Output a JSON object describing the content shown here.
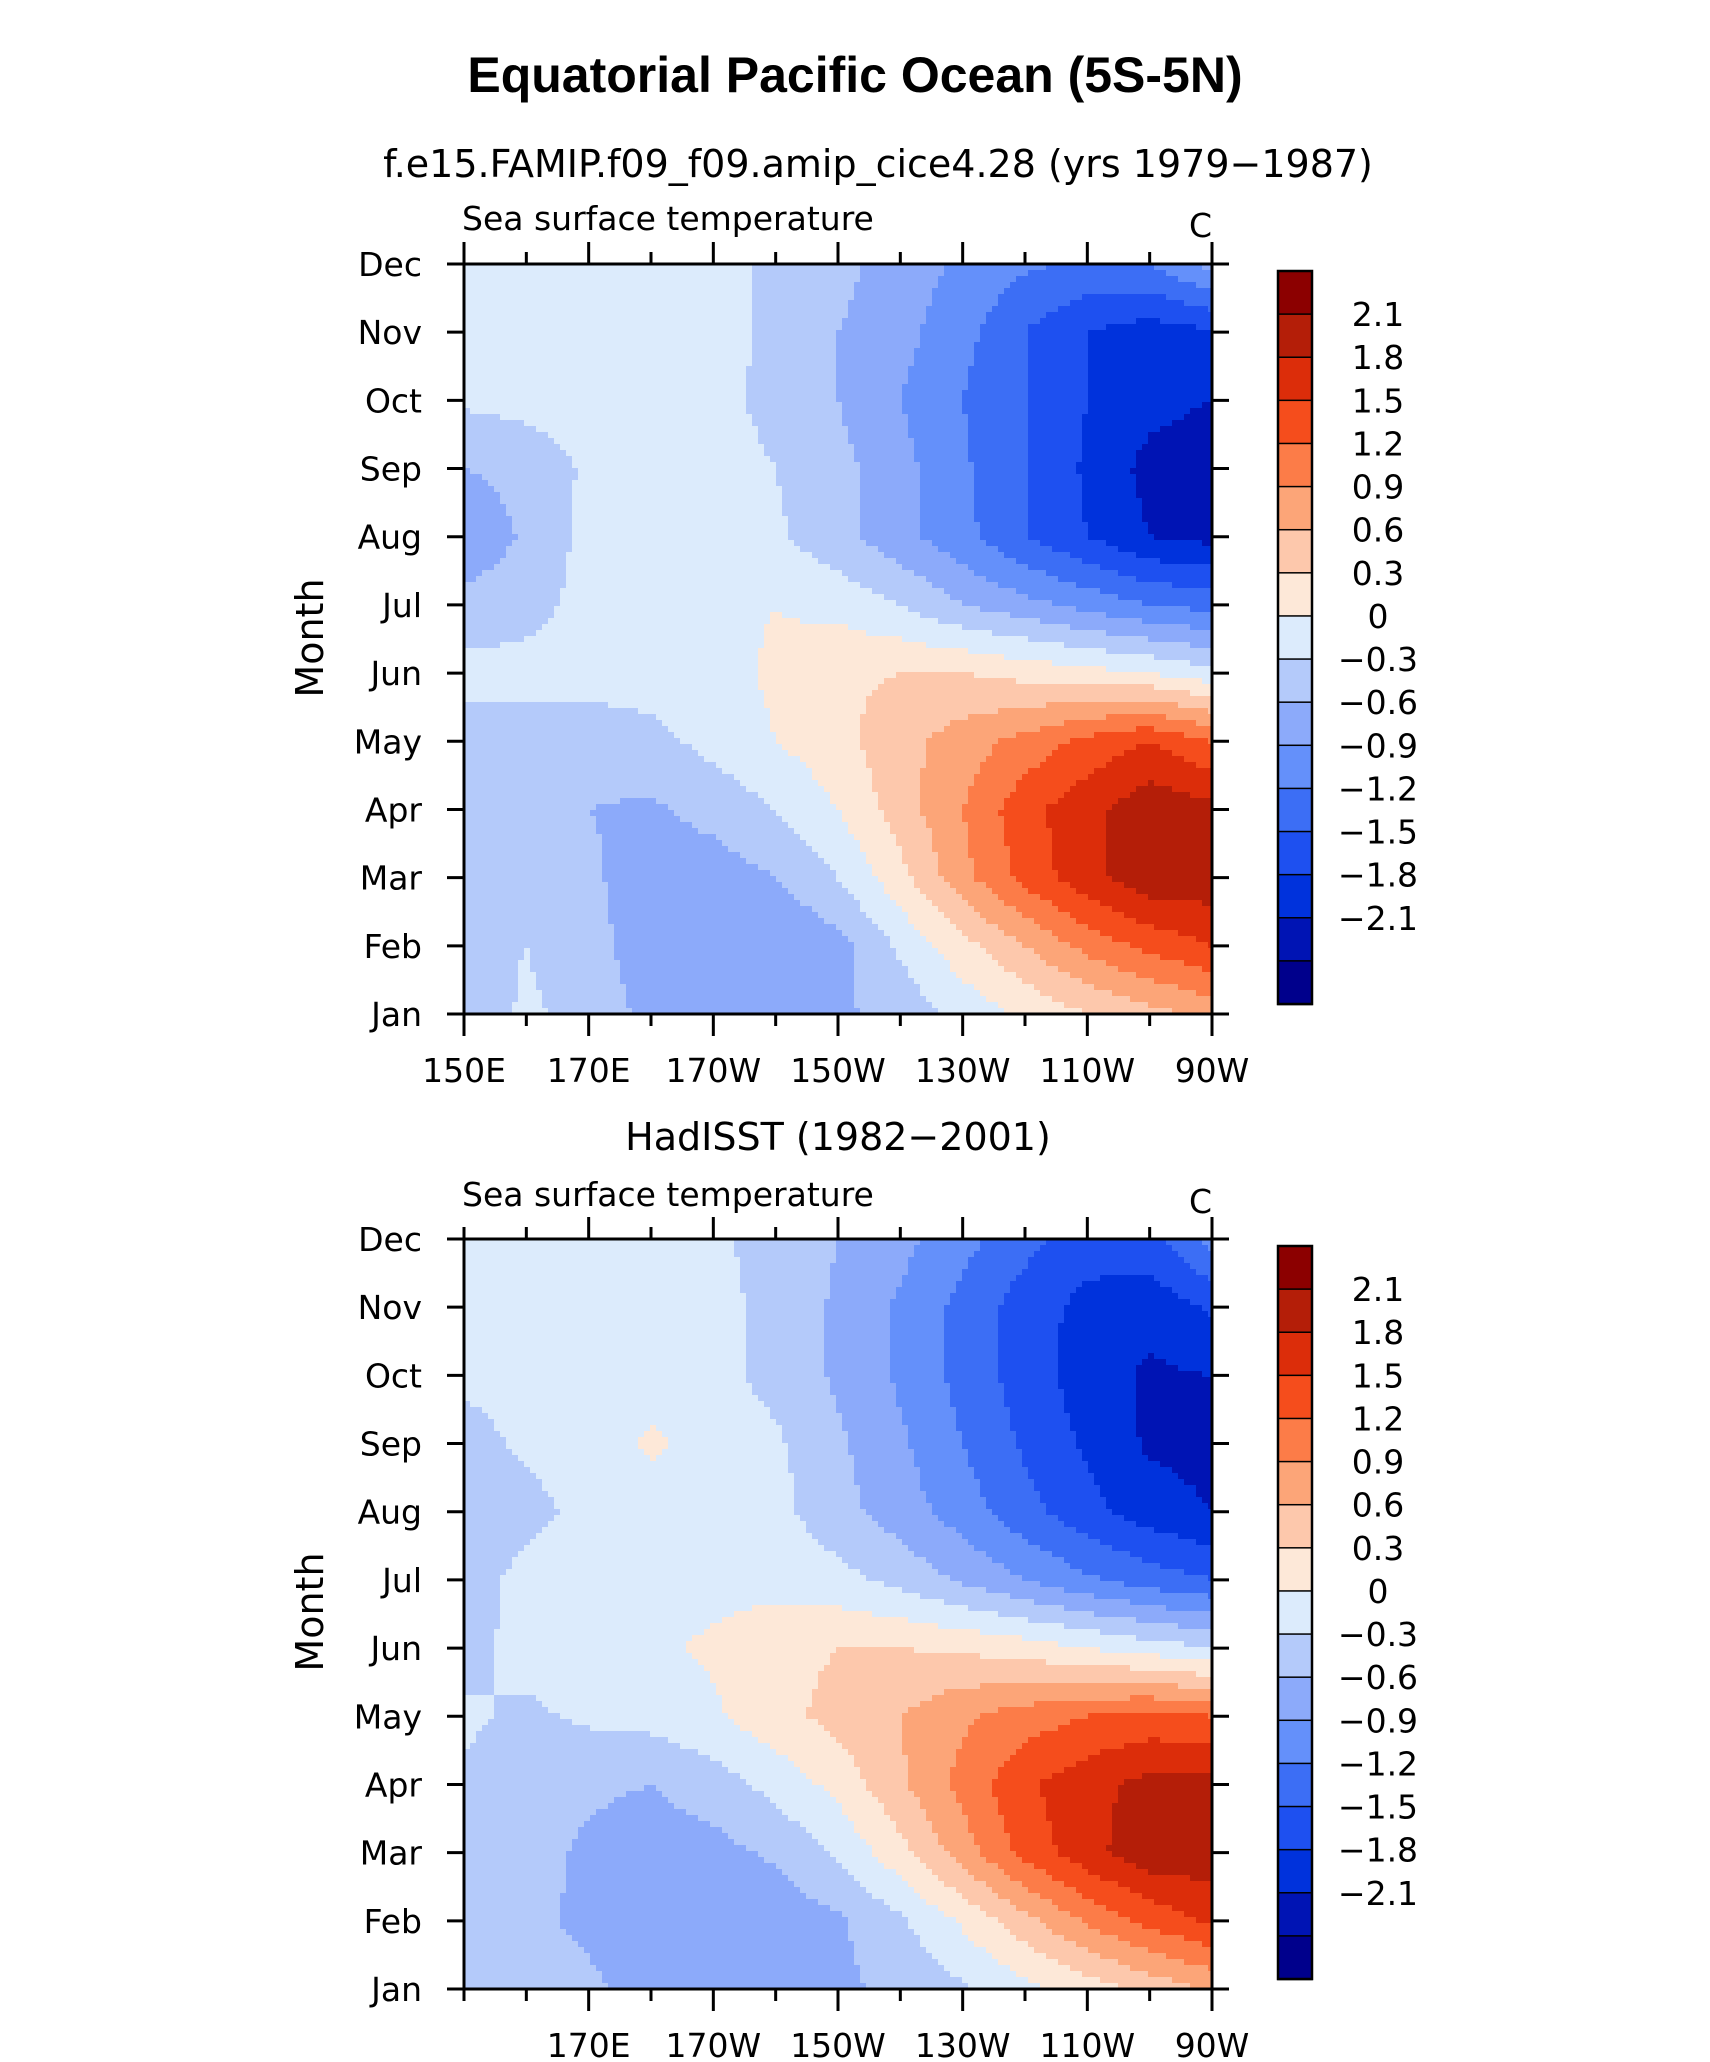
{
  "figure": {
    "title": "Equatorial Pacific Ocean (5S-5N)"
  },
  "palette": {
    "levels": [
      -2.1,
      -1.8,
      -1.5,
      -1.2,
      -0.9,
      -0.6,
      -0.3,
      0,
      0.3,
      0.6,
      0.9,
      1.2,
      1.5,
      1.8,
      2.1
    ],
    "colors": [
      "#00008c",
      "#0014b4",
      "#0032dc",
      "#1e50f0",
      "#3c6ef5",
      "#6490fa",
      "#8caafa",
      "#b4cafa",
      "#dcebfc",
      "#fde8d8",
      "#fdc8ac",
      "#fca578",
      "#fc7c48",
      "#f54d1c",
      "#dc2d0a",
      "#b41e08",
      "#8c0000"
    ]
  },
  "chart_data": [
    {
      "type": "heatmap",
      "title": "f.e15.FAMIP.f09_f09.amip_cice4.28 (yrs 1979−1987)",
      "subtitle_left": "Sea surface temperature",
      "subtitle_right": "C",
      "ylabel": "Month",
      "xlabel": "",
      "x_units": "longitude_deg_east",
      "xlim": [
        150,
        270
      ],
      "x_ticks": [
        {
          "value": 150,
          "label": "150E"
        },
        {
          "value": 170,
          "label": "170E"
        },
        {
          "value": 190,
          "label": "170W"
        },
        {
          "value": 210,
          "label": "150W"
        },
        {
          "value": 230,
          "label": "130W"
        },
        {
          "value": 250,
          "label": "110W"
        },
        {
          "value": 270,
          "label": "90W"
        }
      ],
      "y_ticks": [
        "Jan",
        "Feb",
        "Mar",
        "Apr",
        "May",
        "Jun",
        "Jul",
        "Aug",
        "Sep",
        "Oct",
        "Nov",
        "Dec"
      ],
      "x": [
        150,
        160,
        170,
        180,
        190,
        200,
        210,
        220,
        230,
        240,
        250,
        260,
        270
      ],
      "y": [
        "Jan",
        "Feb",
        "Mar",
        "Apr",
        "May",
        "Jun",
        "Jul",
        "Aug",
        "Sep",
        "Oct",
        "Nov",
        "Dec"
      ],
      "z": [
        [
          -0.2,
          0.05,
          -0.1,
          -0.4,
          -0.45,
          -0.45,
          -0.35,
          -0.2,
          0.1,
          0.35,
          0.6,
          0.8,
          1.0
        ],
        [
          -0.1,
          0.0,
          -0.2,
          -0.45,
          -0.55,
          -0.6,
          -0.4,
          0.05,
          0.5,
          0.9,
          1.3,
          1.6,
          1.8
        ],
        [
          -0.15,
          -0.15,
          -0.25,
          -0.45,
          -0.45,
          -0.3,
          0.0,
          0.5,
          1.1,
          1.6,
          2.0,
          2.3,
          2.3
        ],
        [
          -0.15,
          -0.2,
          -0.3,
          -0.35,
          -0.2,
          0.0,
          0.3,
          0.75,
          1.2,
          1.7,
          2.0,
          2.3,
          2.2
        ],
        [
          -0.15,
          -0.15,
          -0.15,
          -0.1,
          0.1,
          0.3,
          0.5,
          0.8,
          1.05,
          1.3,
          1.6,
          1.8,
          1.5
        ],
        [
          0.1,
          0.1,
          0.1,
          0.15,
          0.2,
          0.35,
          0.55,
          0.6,
          0.6,
          0.5,
          0.4,
          0.3,
          0.1
        ],
        [
          -0.2,
          -0.1,
          0.1,
          0.15,
          0.2,
          0.3,
          0.2,
          0.0,
          -0.3,
          -0.5,
          -0.7,
          -0.9,
          -1.0
        ],
        [
          -0.55,
          -0.25,
          0.1,
          0.1,
          0.1,
          0.05,
          -0.2,
          -0.5,
          -0.8,
          -1.2,
          -1.5,
          -1.8,
          -1.9
        ],
        [
          -0.3,
          -0.2,
          0.05,
          0.15,
          0.15,
          0.0,
          -0.2,
          -0.5,
          -0.85,
          -1.2,
          -1.55,
          -1.9,
          -2.0
        ],
        [
          0.05,
          0.1,
          0.15,
          0.15,
          0.1,
          -0.1,
          -0.3,
          -0.6,
          -0.9,
          -1.2,
          -1.5,
          -1.7,
          -1.8
        ],
        [
          0.1,
          0.15,
          0.25,
          0.15,
          0.1,
          -0.05,
          -0.3,
          -0.5,
          -0.8,
          -1.2,
          -1.5,
          -1.65,
          -1.55
        ],
        [
          0.1,
          0.1,
          0.1,
          0.1,
          0.1,
          -0.05,
          -0.2,
          -0.45,
          -0.65,
          -0.85,
          -0.95,
          -0.9,
          -0.5
        ]
      ],
      "colorbar_labels": [
        "2.1",
        "1.8",
        "1.5",
        "1.2",
        "0.9",
        "0.6",
        "0.3",
        "0",
        "−0.3",
        "−0.6",
        "−0.9",
        "−1.2",
        "−1.5",
        "−1.8",
        "−2.1"
      ]
    },
    {
      "type": "heatmap",
      "title": "HadISST (1982−2001)",
      "subtitle_left": "Sea surface temperature",
      "subtitle_right": "C",
      "ylabel": "Month",
      "xlabel": "",
      "x_units": "longitude_deg_east",
      "xlim": [
        150,
        270
      ],
      "x_ticks": [
        {
          "value": 170,
          "label": "170E"
        },
        {
          "value": 190,
          "label": "170W"
        },
        {
          "value": 210,
          "label": "150W"
        },
        {
          "value": 230,
          "label": "130W"
        },
        {
          "value": 250,
          "label": "110W"
        },
        {
          "value": 270,
          "label": "90W"
        }
      ],
      "y_ticks": [
        "Jan",
        "Feb",
        "Mar",
        "Apr",
        "May",
        "Jun",
        "Jul",
        "Aug",
        "Sep",
        "Oct",
        "Nov",
        "Dec"
      ],
      "x": [
        150,
        160,
        170,
        180,
        190,
        200,
        210,
        220,
        230,
        240,
        250,
        260,
        270
      ],
      "y": [
        "Jan",
        "Feb",
        "Mar",
        "Apr",
        "May",
        "Jun",
        "Jul",
        "Aug",
        "Sep",
        "Oct",
        "Nov",
        "Dec"
      ],
      "z": [
        [
          -0.15,
          -0.2,
          -0.25,
          -0.4,
          -0.45,
          -0.45,
          -0.35,
          -0.25,
          -0.05,
          0.2,
          0.45,
          0.7,
          0.95
        ],
        [
          -0.15,
          -0.25,
          -0.35,
          -0.5,
          -0.55,
          -0.5,
          -0.35,
          -0.05,
          0.35,
          0.8,
          1.25,
          1.6,
          1.85
        ],
        [
          -0.15,
          -0.2,
          -0.35,
          -0.45,
          -0.4,
          -0.25,
          0.05,
          0.5,
          1.05,
          1.6,
          2.0,
          2.3,
          2.3
        ],
        [
          -0.05,
          -0.15,
          -0.25,
          -0.3,
          -0.15,
          0.1,
          0.4,
          0.85,
          1.3,
          1.75,
          2.0,
          2.2,
          2.2
        ],
        [
          0.05,
          -0.05,
          0.05,
          0.1,
          0.25,
          0.5,
          0.7,
          0.9,
          1.15,
          1.35,
          1.5,
          1.6,
          1.5
        ],
        [
          -0.1,
          0.1,
          0.15,
          0.25,
          0.35,
          0.5,
          0.6,
          0.6,
          0.55,
          0.45,
          0.3,
          0.15,
          0.0
        ],
        [
          -0.15,
          0.1,
          0.15,
          0.15,
          0.2,
          0.2,
          0.1,
          -0.1,
          -0.35,
          -0.6,
          -0.85,
          -1.05,
          -1.2
        ],
        [
          -0.25,
          -0.1,
          0.1,
          0.15,
          0.15,
          0.1,
          -0.2,
          -0.45,
          -0.75,
          -1.1,
          -1.4,
          -1.65,
          -1.8
        ],
        [
          -0.1,
          0.05,
          0.15,
          0.35,
          0.2,
          0.05,
          -0.25,
          -0.55,
          -0.9,
          -1.25,
          -1.55,
          -1.85,
          -1.9
        ],
        [
          0.05,
          0.1,
          0.15,
          0.15,
          0.1,
          -0.1,
          -0.35,
          -0.65,
          -1.0,
          -1.35,
          -1.65,
          -1.85,
          -1.8
        ],
        [
          0.1,
          0.1,
          0.15,
          0.15,
          0.1,
          -0.1,
          -0.35,
          -0.65,
          -1.0,
          -1.35,
          -1.6,
          -1.7,
          -1.45
        ],
        [
          0.1,
          0.1,
          0.1,
          0.1,
          0.05,
          -0.1,
          -0.3,
          -0.5,
          -0.8,
          -1.1,
          -1.35,
          -1.3,
          -0.8
        ]
      ],
      "colorbar_labels": [
        "2.1",
        "1.8",
        "1.5",
        "1.2",
        "0.9",
        "0.6",
        "0.3",
        "0",
        "−0.3",
        "−0.6",
        "−0.9",
        "−1.2",
        "−1.5",
        "−1.8",
        "−2.1"
      ]
    }
  ]
}
